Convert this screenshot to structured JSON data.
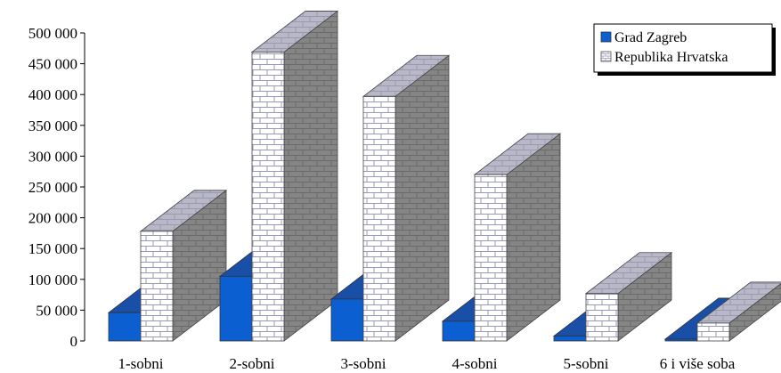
{
  "chart_data": {
    "type": "bar",
    "title": "",
    "xlabel": "",
    "ylabel": "",
    "categories": [
      "1-sobni",
      "2-sobni",
      "3-sobni",
      "4-sobni",
      "5-sobni",
      "6 i više soba"
    ],
    "ylim": [
      0,
      500000
    ],
    "yticks": [
      0,
      50000,
      100000,
      150000,
      200000,
      250000,
      300000,
      350000,
      400000,
      450000,
      500000
    ],
    "ytick_labels": [
      "0",
      "50 000",
      "100 000",
      "150 000",
      "200 000",
      "250 000",
      "300 000",
      "350 000",
      "400 000",
      "450 000",
      "500 000"
    ],
    "series": [
      {
        "name": "Grad Zagreb",
        "values": [
          46000,
          105000,
          68000,
          32000,
          8000,
          3000
        ],
        "color": "#0b5fd0",
        "side_color": "#0a3f8c",
        "top_color": "#1a4fa8"
      },
      {
        "name": "Republika Hrvatska",
        "values": [
          178000,
          469000,
          397000,
          270000,
          77000,
          29000
        ],
        "color": "#ffffff",
        "side_color": "#858585",
        "top_color": "#b8b8c8"
      }
    ],
    "legend": {
      "placement": "top-right",
      "labels": [
        "Grad Zagreb",
        "Republika Hrvatska"
      ]
    },
    "grid": false,
    "three_d": true
  }
}
